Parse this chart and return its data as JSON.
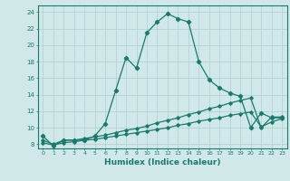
{
  "xlabel": "Humidex (Indice chaleur)",
  "ylabel": "",
  "bg_color": "#d0e8e8",
  "line_color": "#1a7a6e",
  "grid_color": "#b0cece",
  "xlim": [
    -0.5,
    23.5
  ],
  "ylim": [
    7.5,
    24.8
  ],
  "xticks": [
    0,
    1,
    2,
    3,
    4,
    5,
    6,
    7,
    8,
    9,
    10,
    11,
    12,
    13,
    14,
    15,
    16,
    17,
    18,
    19,
    20,
    21,
    22,
    23
  ],
  "yticks": [
    8,
    10,
    12,
    14,
    16,
    18,
    20,
    22,
    24
  ],
  "line1_x": [
    0,
    1,
    2,
    3,
    4,
    5,
    6,
    7,
    8,
    9,
    10,
    11,
    12,
    13,
    14,
    15,
    16,
    17,
    18,
    19,
    20,
    21,
    22,
    23
  ],
  "line1_y": [
    9.0,
    7.8,
    8.5,
    8.5,
    8.5,
    9.0,
    10.5,
    14.5,
    18.5,
    17.2,
    21.5,
    22.8,
    23.8,
    23.2,
    22.8,
    18.0,
    15.8,
    14.8,
    14.2,
    13.8,
    10.0,
    11.8,
    11.2,
    11.2
  ],
  "line2_x": [
    0,
    1,
    2,
    3,
    4,
    5,
    6,
    7,
    8,
    9,
    10,
    11,
    12,
    13,
    14,
    15,
    16,
    17,
    18,
    19,
    20,
    21,
    22,
    23
  ],
  "line2_y": [
    8.5,
    8.0,
    8.5,
    8.5,
    8.7,
    8.9,
    9.1,
    9.4,
    9.7,
    9.9,
    10.2,
    10.6,
    10.9,
    11.2,
    11.6,
    11.9,
    12.3,
    12.6,
    13.0,
    13.3,
    13.6,
    10.0,
    11.3,
    11.3
  ],
  "line3_x": [
    0,
    1,
    2,
    3,
    4,
    5,
    6,
    7,
    8,
    9,
    10,
    11,
    12,
    13,
    14,
    15,
    16,
    17,
    18,
    19,
    20,
    21,
    22,
    23
  ],
  "line3_y": [
    8.2,
    7.9,
    8.2,
    8.3,
    8.5,
    8.6,
    8.8,
    9.0,
    9.2,
    9.4,
    9.6,
    9.8,
    10.0,
    10.3,
    10.5,
    10.8,
    11.0,
    11.2,
    11.5,
    11.7,
    11.9,
    10.1,
    10.7,
    11.1
  ]
}
